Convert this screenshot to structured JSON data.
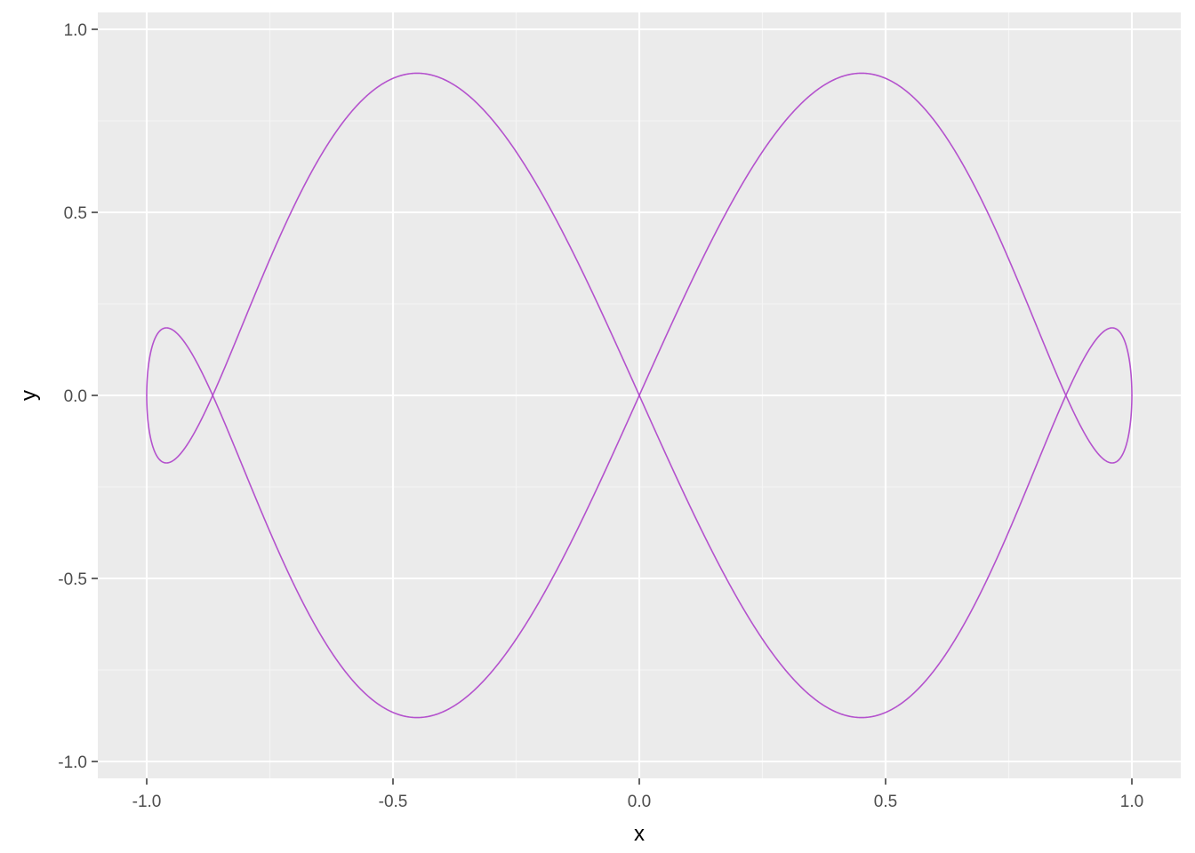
{
  "chart_data": {
    "type": "line",
    "title": "",
    "xlabel": "x",
    "ylabel": "y",
    "xlim": [
      -1.1,
      1.1
    ],
    "ylim": [
      -1.05,
      1.05
    ],
    "x_ticks": [
      {
        "value": -1.0,
        "label": "-1.0"
      },
      {
        "value": -0.5,
        "label": "-0.5"
      },
      {
        "value": 0.0,
        "label": "0.0"
      },
      {
        "value": 0.5,
        "label": "0.5"
      },
      {
        "value": 1.0,
        "label": "1.0"
      }
    ],
    "y_ticks": [
      {
        "value": -1.0,
        "label": "-1.0"
      },
      {
        "value": -0.5,
        "label": "-0.5"
      },
      {
        "value": 0.0,
        "label": "0.0"
      },
      {
        "value": 0.5,
        "label": "0.5"
      },
      {
        "value": 1.0,
        "label": "1.0"
      }
    ],
    "x_minor_ticks": [
      -0.75,
      -0.25,
      0.25,
      0.75
    ],
    "y_minor_ticks": [
      -0.75,
      -0.25,
      0.25,
      0.75
    ],
    "grid": true,
    "legend": "none",
    "curve": {
      "description": "closed parametric curve y(t)",
      "x": "sin(t)",
      "y": "cos(t) * sin(3t)",
      "t_range": [
        0,
        6.283185307
      ],
      "color": "#B452CD"
    },
    "colors": {
      "panel_background": "#EBEBEB",
      "major_grid": "#FFFFFF",
      "minor_grid": "#F5F5F5",
      "tick_mark": "#333333",
      "tick_label": "#4D4D4D"
    }
  }
}
